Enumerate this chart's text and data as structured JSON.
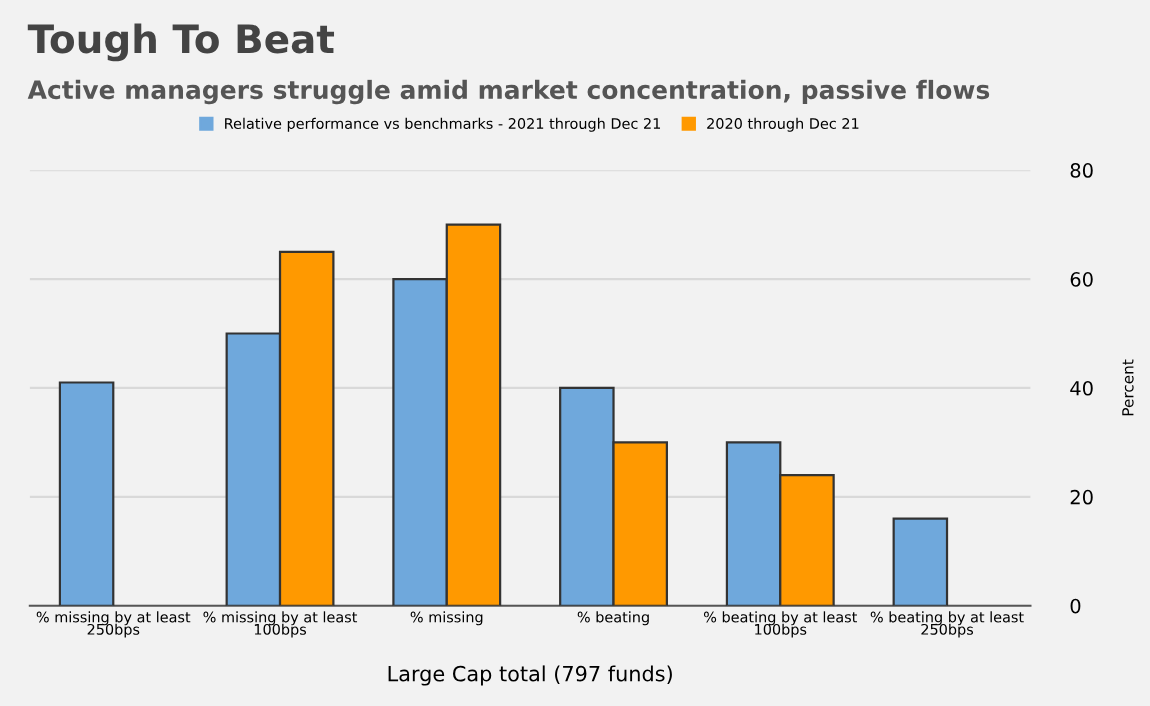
{
  "chart_data": {
    "type": "bar",
    "title": "Tough To Beat",
    "subtitle": "Active managers struggle amid market concentration, passive flows",
    "xlabel": "Large Cap total (797 funds)",
    "ylabel": "Percent",
    "categories": [
      "% missing by at least 250bps",
      "% missing by at least 100bps",
      "% missing",
      "% beating",
      "% beating by at least 100bps",
      "% beating by at least 250bps"
    ],
    "series": [
      {
        "name": "Relative performance vs benchmarks - 2021 through Dec 21",
        "color": "#6fa8dc",
        "values": [
          41,
          50,
          60,
          40,
          30,
          16
        ]
      },
      {
        "name": "2020 through Dec 21",
        "color": "#ff9900",
        "values": [
          null,
          65,
          70,
          30,
          24,
          null
        ]
      }
    ],
    "ylim": [
      0,
      80
    ],
    "yticks": [
      0,
      20,
      40,
      60,
      80
    ],
    "grid": "y",
    "legend": "top"
  }
}
